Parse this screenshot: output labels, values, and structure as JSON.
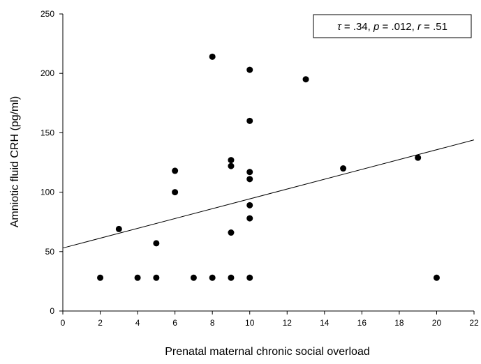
{
  "chart_data": {
    "type": "scatter",
    "title": "",
    "xlabel": "Prenatal maternal chronic social overload",
    "ylabel": "Amniotic fluid CRH (pg/ml)",
    "xlim": [
      0,
      22
    ],
    "ylim": [
      0,
      250
    ],
    "x_ticks": [
      0,
      2,
      4,
      6,
      8,
      10,
      12,
      14,
      16,
      18,
      20,
      22
    ],
    "y_ticks": [
      0,
      50,
      100,
      150,
      200,
      250
    ],
    "grid": false,
    "legend": "none",
    "points": [
      {
        "x": 2,
        "y": 28
      },
      {
        "x": 3,
        "y": 69
      },
      {
        "x": 4,
        "y": 28
      },
      {
        "x": 5,
        "y": 28
      },
      {
        "x": 5,
        "y": 57
      },
      {
        "x": 6,
        "y": 100
      },
      {
        "x": 6,
        "y": 118
      },
      {
        "x": 7,
        "y": 28
      },
      {
        "x": 8,
        "y": 28
      },
      {
        "x": 8,
        "y": 214
      },
      {
        "x": 9,
        "y": 28
      },
      {
        "x": 9,
        "y": 66
      },
      {
        "x": 9,
        "y": 122
      },
      {
        "x": 9,
        "y": 127
      },
      {
        "x": 10,
        "y": 28
      },
      {
        "x": 10,
        "y": 78
      },
      {
        "x": 10,
        "y": 89
      },
      {
        "x": 10,
        "y": 111
      },
      {
        "x": 10,
        "y": 117
      },
      {
        "x": 10,
        "y": 160
      },
      {
        "x": 10,
        "y": 203
      },
      {
        "x": 13,
        "y": 195
      },
      {
        "x": 15,
        "y": 120
      },
      {
        "x": 19,
        "y": 129
      },
      {
        "x": 20,
        "y": 28
      }
    ],
    "regression_line": {
      "x": [
        0,
        22
      ],
      "y": [
        53,
        144
      ]
    },
    "annotation": {
      "parts": [
        {
          "text": "τ",
          "italic": true
        },
        {
          "text": " = .34, ",
          "italic": false
        },
        {
          "text": "p",
          "italic": true
        },
        {
          "text": " = .012, ",
          "italic": false
        },
        {
          "text": "r",
          "italic": true
        },
        {
          "text": " = .51",
          "italic": false
        }
      ]
    },
    "colors": {
      "points": "#000000",
      "line": "#000000",
      "axis": "#000000"
    }
  }
}
